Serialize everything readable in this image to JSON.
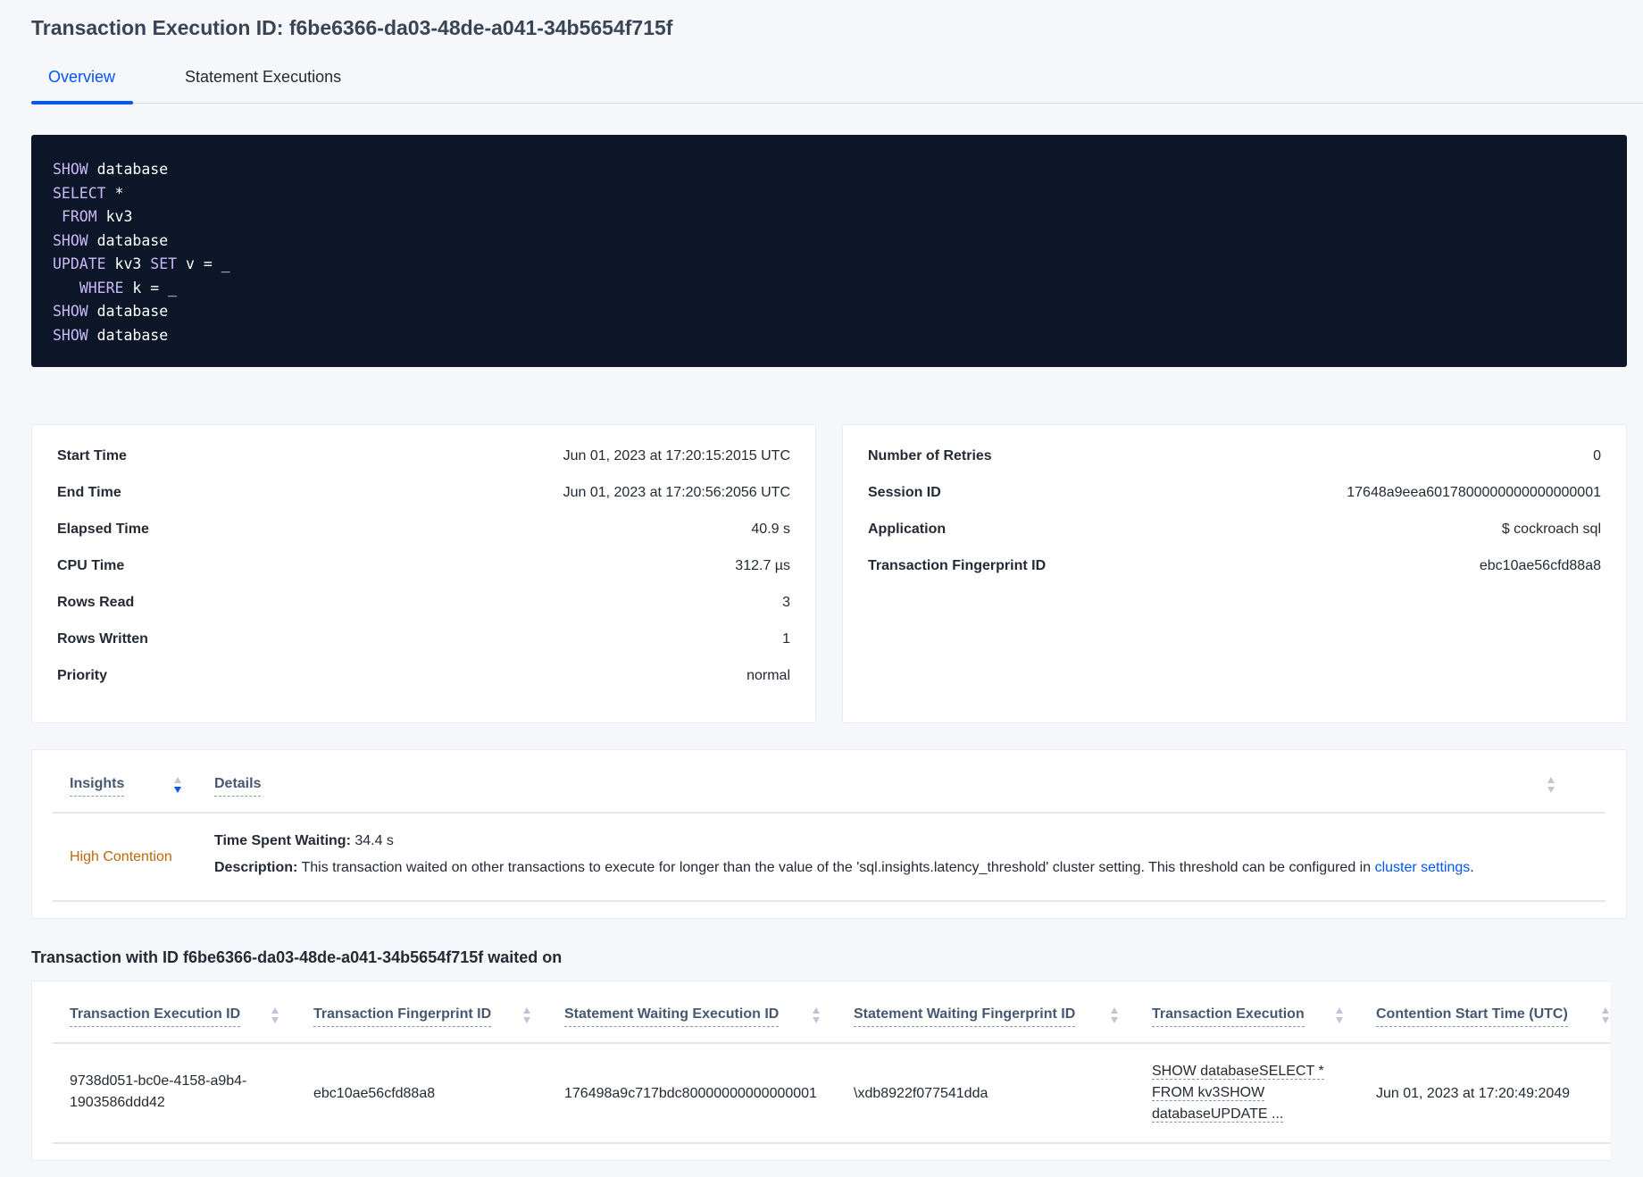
{
  "page": {
    "title": "Transaction Execution ID: f6be6366-da03-48de-a041-34b5654f715f"
  },
  "tabs": [
    {
      "label": "Overview",
      "active": true
    },
    {
      "label": "Statement Executions",
      "active": false
    }
  ],
  "query_lines": [
    [
      {
        "k": "SHOW"
      },
      {
        "t": " database"
      }
    ],
    [
      {
        "k": "SELECT"
      },
      {
        "t": " *"
      }
    ],
    [
      {
        "t": " "
      },
      {
        "k": "FROM"
      },
      {
        "t": " kv3"
      }
    ],
    [
      {
        "k": "SHOW"
      },
      {
        "t": " database"
      }
    ],
    [
      {
        "k": "UPDATE"
      },
      {
        "t": " kv3 "
      },
      {
        "k": "SET"
      },
      {
        "t": " v = _"
      }
    ],
    [
      {
        "t": "   "
      },
      {
        "k": "WHERE"
      },
      {
        "t": " k = _"
      }
    ],
    [
      {
        "k": "SHOW"
      },
      {
        "t": " database"
      }
    ],
    [
      {
        "k": "SHOW"
      },
      {
        "t": " database"
      }
    ]
  ],
  "summary_left": [
    {
      "label": "Start Time",
      "value": "Jun 01, 2023 at 17:20:15:2015 UTC"
    },
    {
      "label": "End Time",
      "value": "Jun 01, 2023 at 17:20:56:2056 UTC"
    },
    {
      "label": "Elapsed Time",
      "value": "40.9 s"
    },
    {
      "label": "CPU Time",
      "value": "312.7 µs"
    },
    {
      "label": "Rows Read",
      "value": "3"
    },
    {
      "label": "Rows Written",
      "value": "1"
    },
    {
      "label": "Priority",
      "value": "normal"
    }
  ],
  "summary_right": [
    {
      "label": "Number of Retries",
      "value": "0"
    },
    {
      "label": "Session ID",
      "value": "17648a9eea6017800000000000000001"
    },
    {
      "label": "Application",
      "value": "$ cockroach sql"
    },
    {
      "label": "Transaction Fingerprint ID",
      "value": "ebc10ae56cfd88a8",
      "link": true
    }
  ],
  "insights": {
    "headers": {
      "insights": "Insights",
      "details": "Details"
    },
    "row": {
      "insight": "High Contention",
      "time_label": "Time Spent Waiting:",
      "time_value": " 34.4 s",
      "desc_label": "Description:",
      "desc_text": " This transaction waited on other transactions to execute for longer than the value of the 'sql.insights.latency_threshold' cluster setting. This threshold can be configured in ",
      "desc_link": "cluster settings",
      "desc_end": "."
    },
    "colors": {
      "insight": "#c0660a",
      "link": "#0055ff"
    }
  },
  "waited_on": {
    "heading": "Transaction with ID f6be6366-da03-48de-a041-34b5654f715f waited on",
    "columns": [
      "Transaction Execution ID",
      "Transaction Fingerprint ID",
      "Statement Waiting Execution ID",
      "Statement Waiting Fingerprint ID",
      "Transaction Execution",
      "Contention Start Time (UTC)"
    ],
    "rows": [
      {
        "txn_exec_id_1": "9738d051-bc0e-4158-a9b4-",
        "txn_exec_id_2": "1903586ddd42",
        "txn_fp_id": "ebc10ae56cfd88a8",
        "stmt_exec_id": "176498a9c717bdc80000000000000001",
        "stmt_fp_id": "\\xdb8922f077541dda",
        "txn_exec_1": "SHOW databaseSELECT *",
        "txn_exec_2": "FROM kv3SHOW",
        "txn_exec_3": "databaseUPDATE ...",
        "start_time": "Jun 01, 2023 at 17:20:49:2049"
      }
    ]
  }
}
